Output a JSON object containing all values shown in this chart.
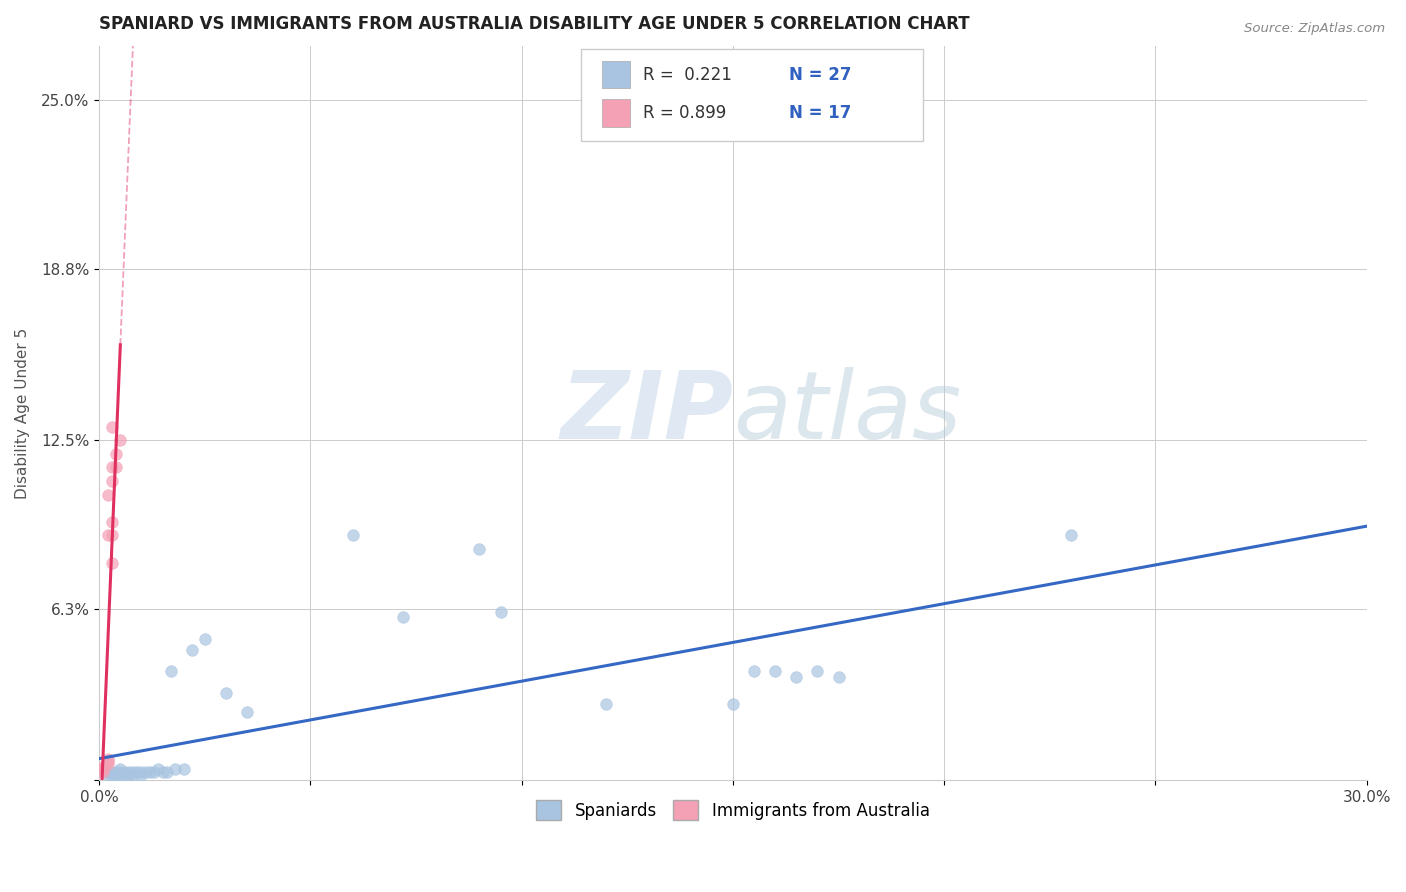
{
  "title": "SPANIARD VS IMMIGRANTS FROM AUSTRALIA DISABILITY AGE UNDER 5 CORRELATION CHART",
  "source": "Source: ZipAtlas.com",
  "ylabel": "Disability Age Under 5",
  "xmin": 0.0,
  "xmax": 0.3,
  "ymin": 0.0,
  "ymax": 0.27,
  "xticks": [
    0.0,
    0.05,
    0.1,
    0.15,
    0.2,
    0.25,
    0.3
  ],
  "xticklabels": [
    "0.0%",
    "",
    "",
    "",
    "",
    "",
    "30.0%"
  ],
  "ytick_positions": [
    0.0,
    0.063,
    0.125,
    0.188,
    0.25
  ],
  "yticklabels": [
    "",
    "6.3%",
    "12.5%",
    "18.8%",
    "25.0%"
  ],
  "blue_color": "#a8c4e0",
  "pink_color": "#f4a0b5",
  "blue_line_color": "#3568c4",
  "pink_line_color": "#e03060",
  "watermark_zip": "ZIP",
  "watermark_atlas": "atlas",
  "spaniards_x": [
    0.002,
    0.002,
    0.003,
    0.003,
    0.004,
    0.004,
    0.005,
    0.005,
    0.005,
    0.006,
    0.006,
    0.007,
    0.007,
    0.008,
    0.008,
    0.009,
    0.01,
    0.01,
    0.011,
    0.012,
    0.013,
    0.014,
    0.015,
    0.016,
    0.017,
    0.018,
    0.02,
    0.022,
    0.025,
    0.03,
    0.035,
    0.06,
    0.072,
    0.09,
    0.095,
    0.12,
    0.15,
    0.155,
    0.16,
    0.165,
    0.17,
    0.175,
    0.23
  ],
  "spaniards_y": [
    0.002,
    0.003,
    0.002,
    0.003,
    0.002,
    0.003,
    0.002,
    0.003,
    0.004,
    0.002,
    0.003,
    0.003,
    0.002,
    0.002,
    0.003,
    0.003,
    0.003,
    0.002,
    0.003,
    0.003,
    0.003,
    0.004,
    0.003,
    0.003,
    0.04,
    0.004,
    0.004,
    0.048,
    0.052,
    0.032,
    0.025,
    0.09,
    0.06,
    0.085,
    0.062,
    0.028,
    0.028,
    0.04,
    0.04,
    0.038,
    0.04,
    0.038,
    0.09
  ],
  "australia_x": [
    0.001,
    0.001,
    0.001,
    0.002,
    0.002,
    0.002,
    0.002,
    0.002,
    0.003,
    0.003,
    0.003,
    0.003,
    0.003,
    0.003,
    0.004,
    0.004,
    0.005
  ],
  "australia_y": [
    0.003,
    0.004,
    0.005,
    0.006,
    0.007,
    0.008,
    0.09,
    0.105,
    0.08,
    0.09,
    0.095,
    0.11,
    0.115,
    0.13,
    0.115,
    0.12,
    0.125
  ]
}
